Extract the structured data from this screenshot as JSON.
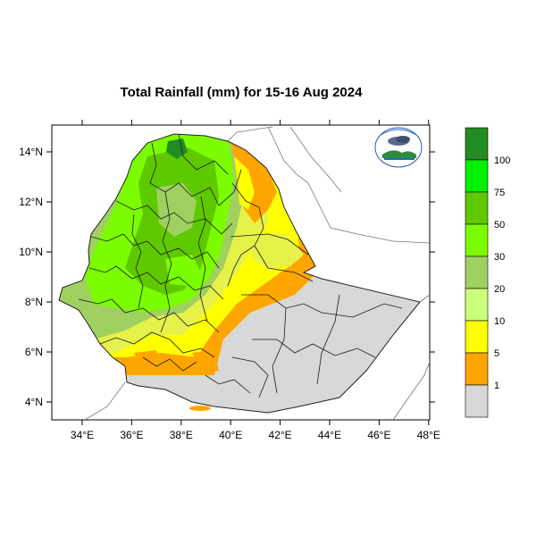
{
  "title": "Total Rainfall (mm) for 15-16 Aug 2024",
  "x_ticks": [
    "34°E",
    "36°E",
    "38°E",
    "40°E",
    "42°E",
    "44°E",
    "46°E",
    "48°E"
  ],
  "y_ticks": [
    "14°N",
    "12°N",
    "10°N",
    "8°N",
    "6°N",
    "4°N"
  ],
  "legend": {
    "labels": [
      "100",
      "75",
      "50",
      "30",
      "20",
      "10",
      "5",
      "1"
    ],
    "colors": [
      "#238b23",
      "#00f000",
      "#5ec800",
      "#7cfc00",
      "#a0d060",
      "#ccff7a",
      "#ffff00",
      "#ffa500",
      "#d8d8d8"
    ]
  },
  "palette": {
    "no_rain": "#d8d8d8",
    "light": "#ffa500",
    "moderate": "#ffff00",
    "heavy_green": "#7cfc00",
    "dark_green": "#5ec800",
    "olive": "#a0d060"
  }
}
